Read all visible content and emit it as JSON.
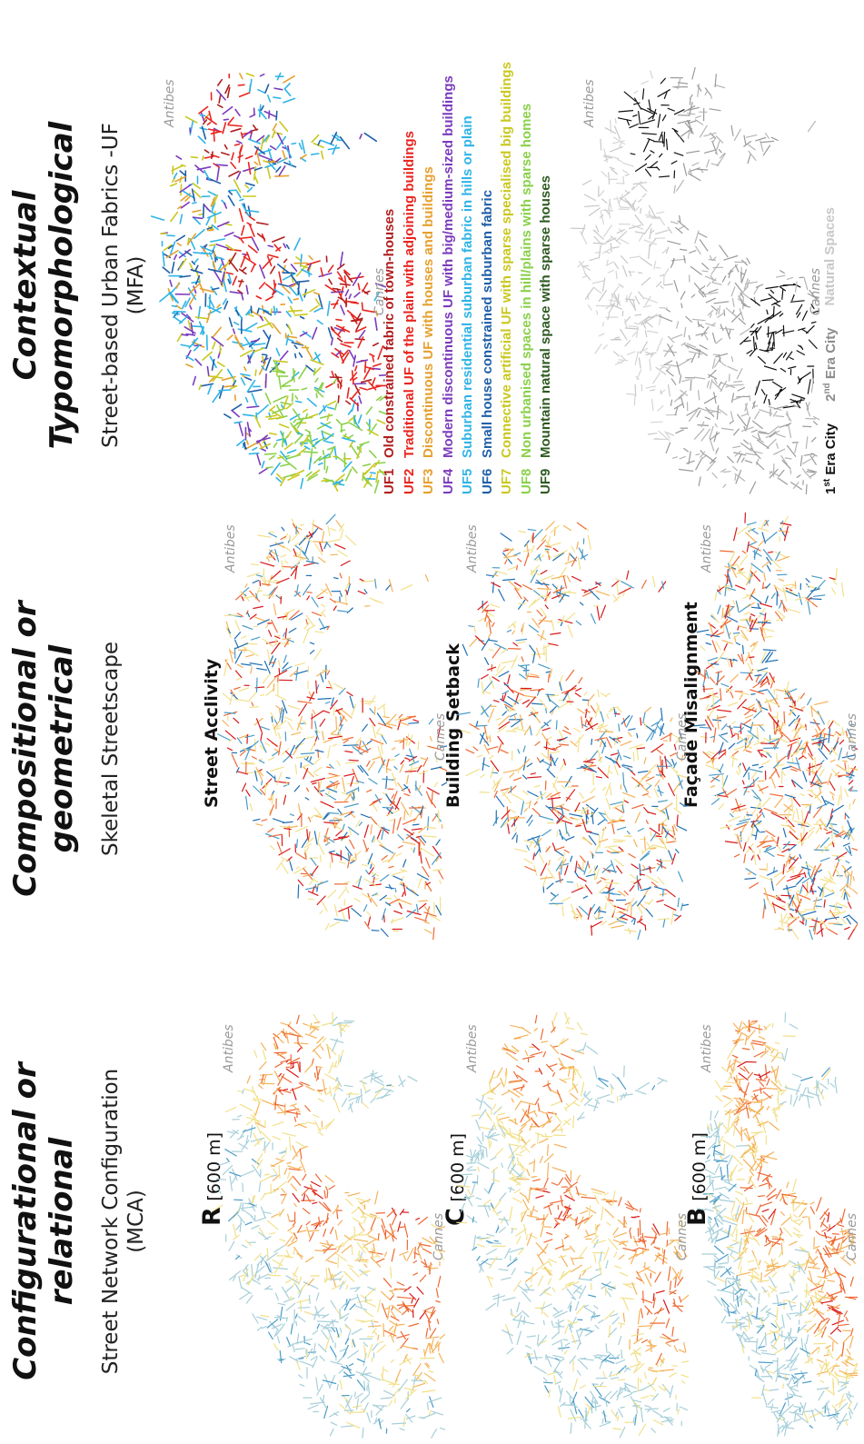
{
  "columns": [
    {
      "title_line1": "Configurational or",
      "title_line2": "relational",
      "subtitle_line1": "Street Network Configuration",
      "subtitle_line2": "(MCA)"
    },
    {
      "title_line1": "Compositional or",
      "title_line2": "geometrical",
      "subtitle_line1": "Skeletal Streetscape",
      "subtitle_line2": ""
    },
    {
      "title_line1": "Contextual",
      "title_line2": "Typomorphological",
      "subtitle_line1": "Street-based Urban Fabrics -UF",
      "subtitle_line2": "(MFA)"
    }
  ],
  "maps": {
    "config": [
      {
        "letter": "R",
        "units": "[600 m]"
      },
      {
        "letter": "C",
        "units": "[600 m]"
      },
      {
        "letter": "B",
        "units": "[600 m]"
      }
    ],
    "geometric": [
      {
        "label": "Street Acclivity"
      },
      {
        "label": "Building Setback"
      },
      {
        "label": "Façade Misalignment"
      }
    ],
    "city_labels": {
      "left": "Cannes",
      "right": "Antibes"
    }
  },
  "legend": {
    "items": [
      {
        "code": "UF1",
        "text": "Old constrained fabric of town-houses",
        "color": "#b01e1e"
      },
      {
        "code": "UF2",
        "text": "Traditional UF of the plain with adjoining buildings",
        "color": "#e8251f"
      },
      {
        "code": "UF3",
        "text": "Discontinuous UF with houses and buildings",
        "color": "#e6a02e"
      },
      {
        "code": "UF4",
        "text": "Modern discontinuous UF with big/medium-sized buildings",
        "color": "#7b3bbd"
      },
      {
        "code": "UF5",
        "text": "Suburban residential suburban fabric in hills or plain",
        "color": "#2fb4e6"
      },
      {
        "code": "UF6",
        "text": "Small house constrained suburban fabric",
        "color": "#1f5fa8"
      },
      {
        "code": "UF7",
        "text": "Connective artificial UF with sparse specialised big buildings",
        "color": "#c9c81f"
      },
      {
        "code": "UF8",
        "text": "Non urbanised spaces in hill/plains with sparse homes",
        "color": "#8ad14a"
      },
      {
        "code": "UF9",
        "text": "Mountain natural space with sparse houses",
        "color": "#2e5a22"
      }
    ]
  },
  "eras": {
    "first_prefix": "1",
    "first_sup": "st",
    "first_suffix": " Era City",
    "second_prefix": "2",
    "second_sup": "nd",
    "second_suffix": " Era City",
    "natural": "Natural Spaces",
    "colors": {
      "first": "#111111",
      "second": "#8c8c8c",
      "natural": "#c8c8c8"
    }
  },
  "palette": {
    "rwb": [
      "#1f6fb3",
      "#4a9bc7",
      "#a6cfd9",
      "#f2e08a",
      "#f5b25a",
      "#ee6a35",
      "#d7191c"
    ]
  }
}
